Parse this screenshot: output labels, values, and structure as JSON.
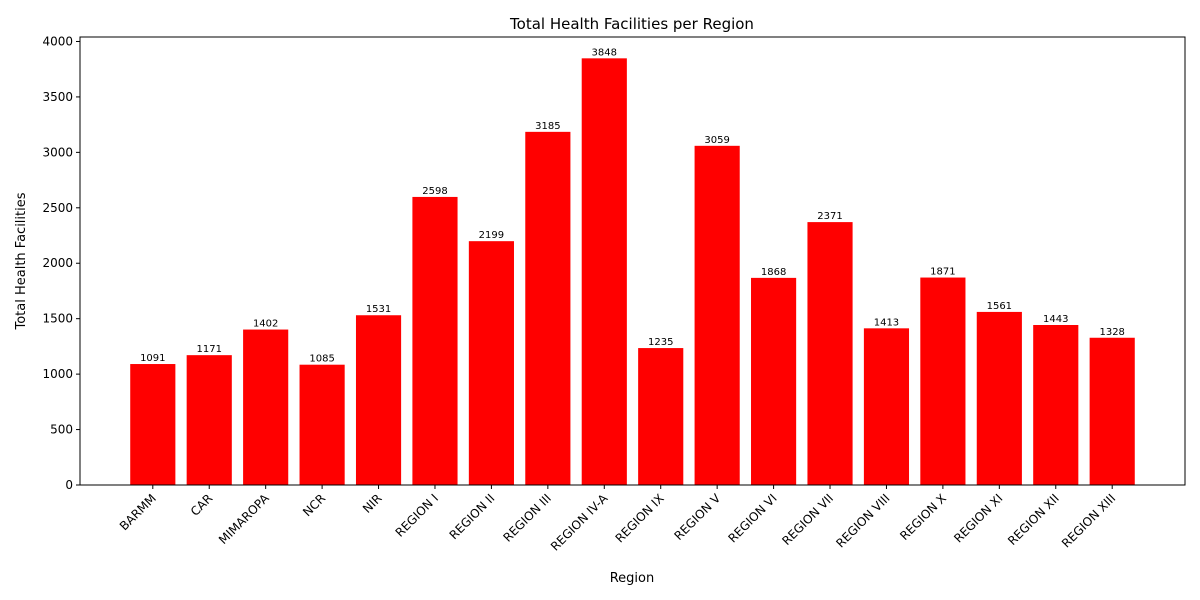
{
  "chart_data": {
    "type": "bar",
    "title": "Total Health Facilities per Region",
    "x_label": "Region",
    "y_label": "Total Health Facilities",
    "categories": [
      "BARMM",
      "CAR",
      "MIMAROPA",
      "NCR",
      "NIR",
      "REGION I",
      "REGION II",
      "REGION III",
      "REGION IV-A",
      "REGION IX",
      "REGION V",
      "REGION VI",
      "REGION VII",
      "REGION VIII",
      "REGION X",
      "REGION XI",
      "REGION XII",
      "REGION XIII"
    ],
    "values": [
      1091,
      1171,
      1402,
      1085,
      1531,
      2598,
      2199,
      3185,
      3848,
      1235,
      3059,
      1868,
      2371,
      1413,
      1871,
      1561,
      1443,
      1328
    ],
    "color": "#ff0000",
    "ylim": [
      0,
      4040.4
    ],
    "yticks": [
      0,
      500,
      1000,
      1500,
      2000,
      2500,
      3000,
      3500,
      4000
    ],
    "grid": false
  }
}
